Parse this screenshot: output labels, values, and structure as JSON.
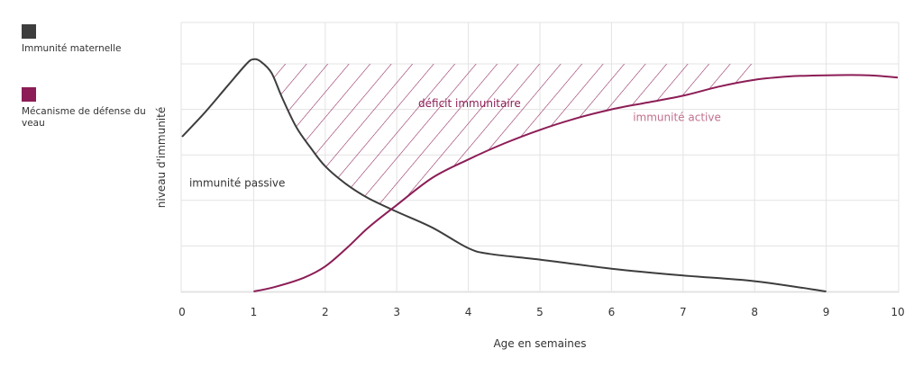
{
  "colors": {
    "maternal": "#3d3d3d",
    "calf": "#8c1d56",
    "active_label": "#c0708f",
    "grid": "#e3e3e3",
    "plot_bg": "#ffffff"
  },
  "legend": [
    {
      "label": "Immunité maternelle",
      "color": "#3d3d3d"
    },
    {
      "label": "Mécanisme de défense du veau",
      "color": "#8c1d56"
    }
  ],
  "chart_data": {
    "type": "line",
    "title": "",
    "xlabel": "Age en semaines",
    "ylabel": "niveau d'immunité",
    "xlim": [
      0,
      10
    ],
    "ylim": [
      0,
      100
    ],
    "xticks": [
      0,
      1,
      2,
      3,
      4,
      5,
      6,
      7,
      8,
      9,
      10
    ],
    "grid": true,
    "series": [
      {
        "name": "immunité passive",
        "color": "#3d3d3d",
        "points": [
          [
            0,
            68
          ],
          [
            0.3,
            78
          ],
          [
            0.6,
            89
          ],
          [
            0.9,
            100
          ],
          [
            1.0,
            102
          ],
          [
            1.1,
            101
          ],
          [
            1.25,
            96
          ],
          [
            1.4,
            85
          ],
          [
            1.6,
            72
          ],
          [
            1.8,
            63
          ],
          [
            2.0,
            55
          ],
          [
            2.3,
            47
          ],
          [
            2.6,
            41
          ],
          [
            3.0,
            35
          ],
          [
            3.5,
            28
          ],
          [
            4.0,
            19
          ],
          [
            4.3,
            16.5
          ],
          [
            5.0,
            14
          ],
          [
            6.0,
            10
          ],
          [
            7.0,
            7
          ],
          [
            8.0,
            4.5
          ],
          [
            9.0,
            0
          ]
        ]
      },
      {
        "name": "immunité active",
        "color": "#8c1d56",
        "points": [
          [
            1.0,
            0
          ],
          [
            1.3,
            2
          ],
          [
            1.7,
            6
          ],
          [
            2.0,
            11
          ],
          [
            2.3,
            19
          ],
          [
            2.6,
            28
          ],
          [
            3.0,
            38
          ],
          [
            3.5,
            50
          ],
          [
            4.0,
            58
          ],
          [
            4.5,
            65
          ],
          [
            5.0,
            71
          ],
          [
            5.5,
            76
          ],
          [
            6.0,
            80
          ],
          [
            6.5,
            83
          ],
          [
            7.0,
            86
          ],
          [
            7.5,
            90
          ],
          [
            8.0,
            93
          ],
          [
            8.5,
            94.5
          ],
          [
            9.0,
            95
          ],
          [
            9.6,
            95
          ],
          [
            10.0,
            94
          ]
        ]
      }
    ],
    "annotations": [
      {
        "text": "déficit immunitaire",
        "x": 3.3,
        "y": 81,
        "color": "#8c1d56"
      },
      {
        "text": "immunité active",
        "x": 6.3,
        "y": 75,
        "color": "#c0708f"
      },
      {
        "text": "immunité passive",
        "x": 0.1,
        "y": 46,
        "color": "#333333"
      }
    ],
    "hatched_region": {
      "label": "déficit immunitaire",
      "top_y": 100,
      "x_start": 1.25,
      "x_end": 8.0
    }
  }
}
